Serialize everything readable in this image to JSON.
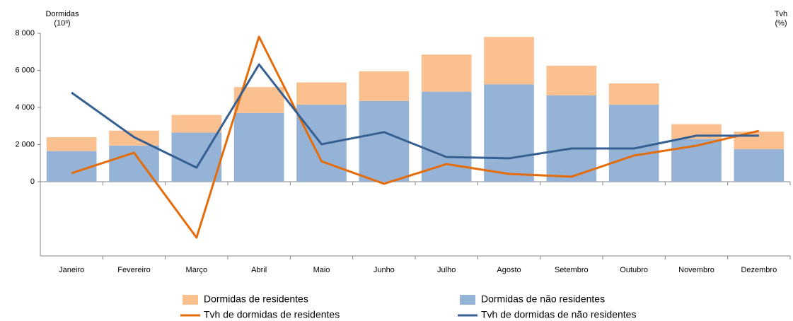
{
  "chart_data": {
    "type": "combo",
    "ylabel": [
      "Dormidas",
      "(10³)"
    ],
    "y2label": [
      "Tvh",
      "(%)"
    ],
    "categories": [
      "Janeiro",
      "Fevereiro",
      "Março",
      "Abril",
      "Maio",
      "Junho",
      "Julho",
      "Agosto",
      "Setembro",
      "Outubro",
      "Novembro",
      "Dezembro"
    ],
    "series": [
      {
        "name": "Dormidas de não residentes",
        "type": "bar",
        "color": "#95b3d7",
        "values": [
          1650,
          1950,
          2650,
          3700,
          4150,
          4350,
          4850,
          5250,
          4650,
          4150,
          2300,
          1750
        ]
      },
      {
        "name": "Dormidas de residentes",
        "type": "bar",
        "color": "#fac090",
        "values": [
          750,
          800,
          950,
          1400,
          1200,
          1600,
          2000,
          2550,
          1600,
          1150,
          800,
          950
        ]
      },
      {
        "name": "Tvh de dormidas de residentes",
        "type": "line",
        "axis": "y2",
        "color": "#e46c0a",
        "values": [
          4.6,
          15.6,
          -30.1,
          78.1,
          11.0,
          -1.1,
          9.5,
          4.2,
          2.7,
          14.1,
          19.4,
          27.4
        ]
      },
      {
        "name": "Tvh de dormidas de não residentes",
        "type": "line",
        "axis": "y2",
        "color": "#376092",
        "values": [
          48.0,
          24.0,
          7.6,
          63.2,
          20.2,
          26.7,
          13.3,
          12.6,
          17.9,
          17.9,
          24.8,
          24.8
        ]
      }
    ],
    "legend_order": [
      1,
      0,
      2,
      3
    ],
    "ylim": [
      -4000,
      8000
    ],
    "yticks": [
      {
        "value": 0,
        "label": "0"
      },
      {
        "value": 2000,
        "label": "2 000"
      },
      {
        "value": 4000,
        "label": "4 000"
      },
      {
        "value": 6000,
        "label": "6 000"
      },
      {
        "value": 8000,
        "label": "8 000"
      }
    ],
    "y2lim": [
      -40,
      80
    ],
    "grid": false
  }
}
